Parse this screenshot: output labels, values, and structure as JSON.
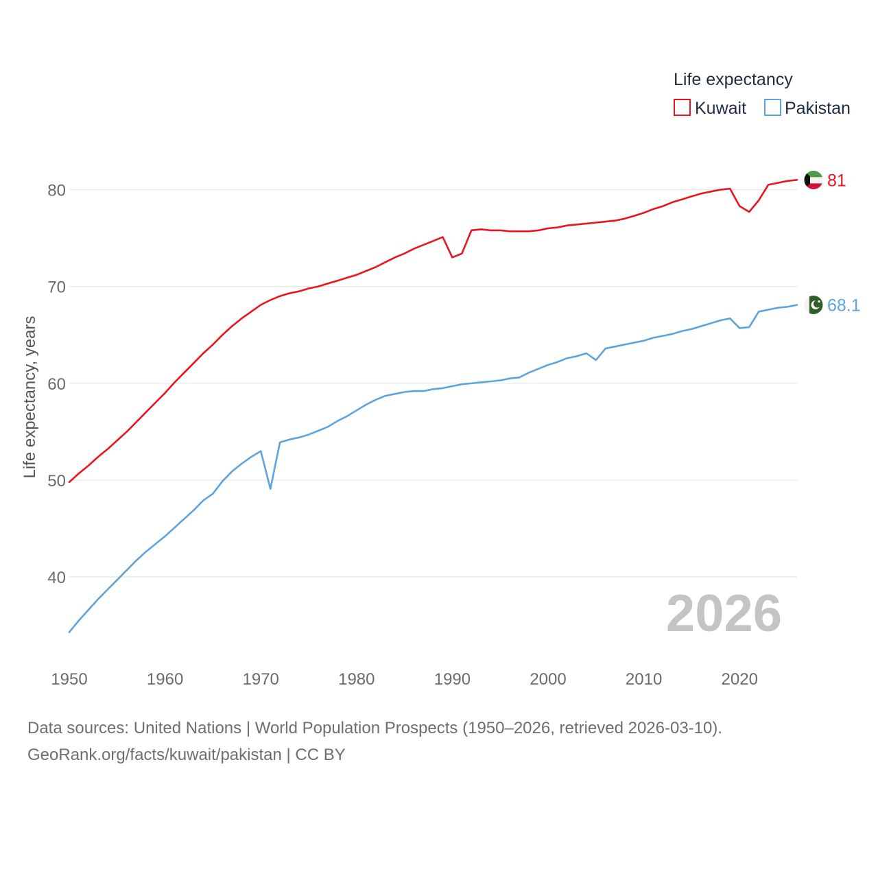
{
  "chart_data": {
    "type": "line",
    "title": "",
    "xlabel": "",
    "ylabel": "Life expectancy, years",
    "xlim": [
      1950,
      2026
    ],
    "ylim": [
      34.2,
      84
    ],
    "x_ticks": [
      1950,
      1960,
      1970,
      1980,
      1990,
      2000,
      2010,
      2020
    ],
    "y_ticks": [
      40,
      50,
      60,
      70,
      80
    ],
    "grid": "horizontal",
    "legend": {
      "title": "Life expectancy",
      "position": "top-right"
    },
    "current_year_label": "2026",
    "x": [
      1950,
      1951,
      1952,
      1953,
      1954,
      1955,
      1956,
      1957,
      1958,
      1959,
      1960,
      1961,
      1962,
      1963,
      1964,
      1965,
      1966,
      1967,
      1968,
      1969,
      1970,
      1971,
      1972,
      1973,
      1974,
      1975,
      1976,
      1977,
      1978,
      1979,
      1980,
      1981,
      1982,
      1983,
      1984,
      1985,
      1986,
      1987,
      1988,
      1989,
      1990,
      1991,
      1992,
      1993,
      1994,
      1995,
      1996,
      1997,
      1998,
      1999,
      2000,
      2001,
      2002,
      2003,
      2004,
      2005,
      2006,
      2007,
      2008,
      2009,
      2010,
      2011,
      2012,
      2013,
      2014,
      2015,
      2016,
      2017,
      2018,
      2019,
      2020,
      2021,
      2022,
      2023,
      2024,
      2025,
      2026
    ],
    "series": [
      {
        "name": "Kuwait",
        "color": "#e8141e",
        "end_label": "81",
        "flag": "kuwait-flag-icon",
        "values": [
          49.8,
          50.7,
          51.5,
          52.4,
          53.2,
          54.1,
          55.0,
          56.0,
          57.0,
          58.0,
          59.0,
          60.1,
          61.1,
          62.1,
          63.1,
          64.0,
          65.0,
          65.9,
          66.7,
          67.4,
          68.1,
          68.6,
          69.0,
          69.3,
          69.5,
          69.8,
          70.0,
          70.3,
          70.6,
          70.9,
          71.2,
          71.6,
          72.0,
          72.5,
          73.0,
          73.4,
          73.9,
          74.3,
          74.7,
          75.1,
          73.0,
          73.4,
          75.8,
          75.9,
          75.8,
          75.8,
          75.7,
          75.7,
          75.7,
          75.8,
          76.0,
          76.1,
          76.3,
          76.4,
          76.5,
          76.6,
          76.7,
          76.8,
          77.0,
          77.3,
          77.6,
          78.0,
          78.3,
          78.7,
          79.0,
          79.3,
          79.6,
          79.8,
          80.0,
          80.1,
          78.3,
          77.7,
          78.9,
          80.5,
          80.7,
          80.9,
          81.0
        ]
      },
      {
        "name": "Pakistan",
        "color": "#5ba4e0",
        "end_label": "68.1",
        "flag": "pakistan-flag-icon",
        "values": [
          34.3,
          35.5,
          36.6,
          37.7,
          38.7,
          39.7,
          40.7,
          41.7,
          42.6,
          43.4,
          44.2,
          45.1,
          46.0,
          46.9,
          47.9,
          48.6,
          49.9,
          50.9,
          51.7,
          52.4,
          53.0,
          49.1,
          53.9,
          54.2,
          54.4,
          54.7,
          55.1,
          55.5,
          56.1,
          56.6,
          57.2,
          57.8,
          58.3,
          58.7,
          58.9,
          59.1,
          59.2,
          59.2,
          59.4,
          59.5,
          59.7,
          59.9,
          60.0,
          60.1,
          60.2,
          60.3,
          60.5,
          60.6,
          61.1,
          61.5,
          61.9,
          62.2,
          62.6,
          62.8,
          63.1,
          62.4,
          63.6,
          63.8,
          64.0,
          64.2,
          64.4,
          64.7,
          64.9,
          65.1,
          65.4,
          65.6,
          65.9,
          66.2,
          66.5,
          66.7,
          65.7,
          65.8,
          67.4,
          67.6,
          67.8,
          67.9,
          68.1
        ]
      }
    ]
  },
  "source": {
    "line1": "Data sources: United Nations | World Population Prospects (1950–2026, retrieved 2026-03-10).",
    "line2": "GeoRank.org/facts/kuwait/pakistan | CC BY"
  }
}
